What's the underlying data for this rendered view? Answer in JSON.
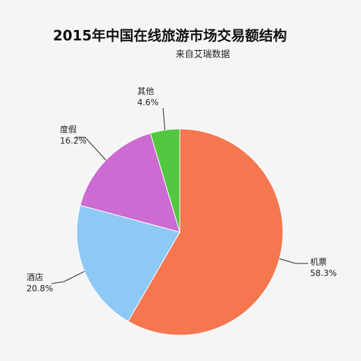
{
  "chart_data": {
    "type": "pie",
    "title": "2015年中国在线旅游市场交易额结构",
    "subtitle": "来自艾瑞数据",
    "slices": [
      {
        "name": "机票",
        "value": 58.3,
        "label": "58.3%",
        "color": "#f47750"
      },
      {
        "name": "酒店",
        "value": 20.8,
        "label": "20.8%",
        "color": "#8ec9f5"
      },
      {
        "name": "度假",
        "value": 16.2,
        "label": "16.2%",
        "color": "#cc6bd1"
      },
      {
        "name": "其他",
        "value": 4.6,
        "label": "4.6%",
        "color": "#51c840"
      }
    ],
    "start": "top",
    "direction": "clockwise"
  }
}
